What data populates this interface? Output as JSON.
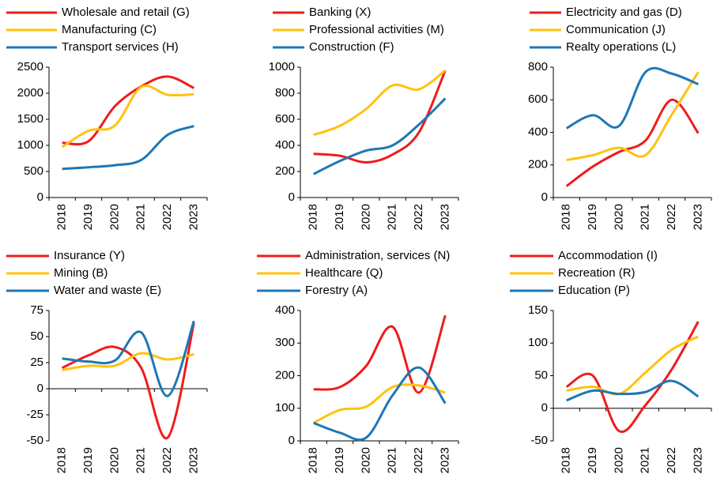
{
  "chart_data": [
    {
      "type": "line",
      "categories": [
        "2018",
        "2019",
        "2020",
        "2021",
        "2022",
        "2023"
      ],
      "ylim": [
        0,
        2500
      ],
      "yticks": [
        0,
        500,
        1000,
        1500,
        2000,
        2500
      ],
      "series": [
        {
          "name": "Wholesale and retail (G)",
          "color": "#ee1c1c",
          "values": [
            1050,
            1080,
            1750,
            2130,
            2320,
            2100
          ]
        },
        {
          "name": "Manufacturing (C)",
          "color": "#ffc20e",
          "values": [
            970,
            1280,
            1380,
            2120,
            1970,
            1980
          ]
        },
        {
          "name": "Transport services (H)",
          "color": "#1f77b4",
          "values": [
            550,
            580,
            620,
            720,
            1200,
            1370
          ]
        }
      ]
    },
    {
      "type": "line",
      "categories": [
        "2018",
        "2019",
        "2020",
        "2021",
        "2022",
        "2023"
      ],
      "ylim": [
        0,
        1000
      ],
      "yticks": [
        0,
        200,
        400,
        600,
        800,
        1000
      ],
      "series": [
        {
          "name": "Banking (X)",
          "color": "#ee1c1c",
          "values": [
            335,
            320,
            270,
            330,
            500,
            975
          ]
        },
        {
          "name": "Professional activities (M)",
          "color": "#ffc20e",
          "values": [
            480,
            550,
            680,
            860,
            830,
            975
          ]
        },
        {
          "name": "Construction (F)",
          "color": "#1f77b4",
          "values": [
            180,
            280,
            360,
            400,
            560,
            760
          ]
        }
      ]
    },
    {
      "type": "line",
      "categories": [
        "2018",
        "2019",
        "2020",
        "2021",
        "2022",
        "2023"
      ],
      "ylim": [
        0,
        800
      ],
      "yticks": [
        0,
        200,
        400,
        600,
        800
      ],
      "series": [
        {
          "name": "Electricity and gas (D)",
          "color": "#ee1c1c",
          "values": [
            70,
            190,
            280,
            350,
            600,
            395
          ]
        },
        {
          "name": "Communication (J)",
          "color": "#ffc20e",
          "values": [
            230,
            260,
            305,
            260,
            510,
            770
          ]
        },
        {
          "name": "Realty operations (L)",
          "color": "#1f77b4",
          "values": [
            425,
            505,
            440,
            770,
            760,
            695
          ]
        }
      ]
    },
    {
      "type": "line",
      "categories": [
        "2018",
        "2019",
        "2020",
        "2021",
        "2022",
        "2023"
      ],
      "ylim": [
        -50,
        75
      ],
      "yticks": [
        -50,
        -25,
        0,
        25,
        50,
        75
      ],
      "series": [
        {
          "name": "Insurance (Y)",
          "color": "#ee1c1c",
          "values": [
            20,
            32,
            40,
            20,
            -47,
            63
          ]
        },
        {
          "name": "Mining (B)",
          "color": "#ffc20e",
          "values": [
            18,
            22,
            22,
            34,
            28,
            33
          ]
        },
        {
          "name": "Water and waste (E)",
          "color": "#1f77b4",
          "values": [
            29,
            26,
            27,
            54,
            -7,
            65
          ]
        }
      ]
    },
    {
      "type": "line",
      "categories": [
        "2018",
        "2019",
        "2020",
        "2021",
        "2022",
        "2023"
      ],
      "ylim": [
        0,
        400
      ],
      "yticks": [
        0,
        100,
        200,
        300,
        400
      ],
      "series": [
        {
          "name": "Administration, services (N)",
          "color": "#ee1c1c",
          "values": [
            158,
            165,
            230,
            350,
            148,
            385
          ]
        },
        {
          "name": "Healthcare (Q)",
          "color": "#ffc20e",
          "values": [
            55,
            95,
            105,
            165,
            170,
            148
          ]
        },
        {
          "name": "Forestry (A)",
          "color": "#1f77b4",
          "values": [
            55,
            25,
            10,
            140,
            225,
            115
          ]
        }
      ]
    },
    {
      "type": "line",
      "categories": [
        "2018",
        "2019",
        "2020",
        "2021",
        "2022",
        "2023"
      ],
      "ylim": [
        -50,
        150
      ],
      "yticks": [
        -50,
        0,
        50,
        100,
        150
      ],
      "series": [
        {
          "name": "Accommodation (I)",
          "color": "#ee1c1c",
          "values": [
            33,
            50,
            -35,
            5,
            60,
            133
          ]
        },
        {
          "name": "Recreation (R)",
          "color": "#ffc20e",
          "values": [
            27,
            33,
            22,
            55,
            90,
            110
          ]
        },
        {
          "name": "Education (P)",
          "color": "#1f77b4",
          "values": [
            12,
            27,
            22,
            25,
            42,
            18
          ]
        }
      ]
    }
  ]
}
